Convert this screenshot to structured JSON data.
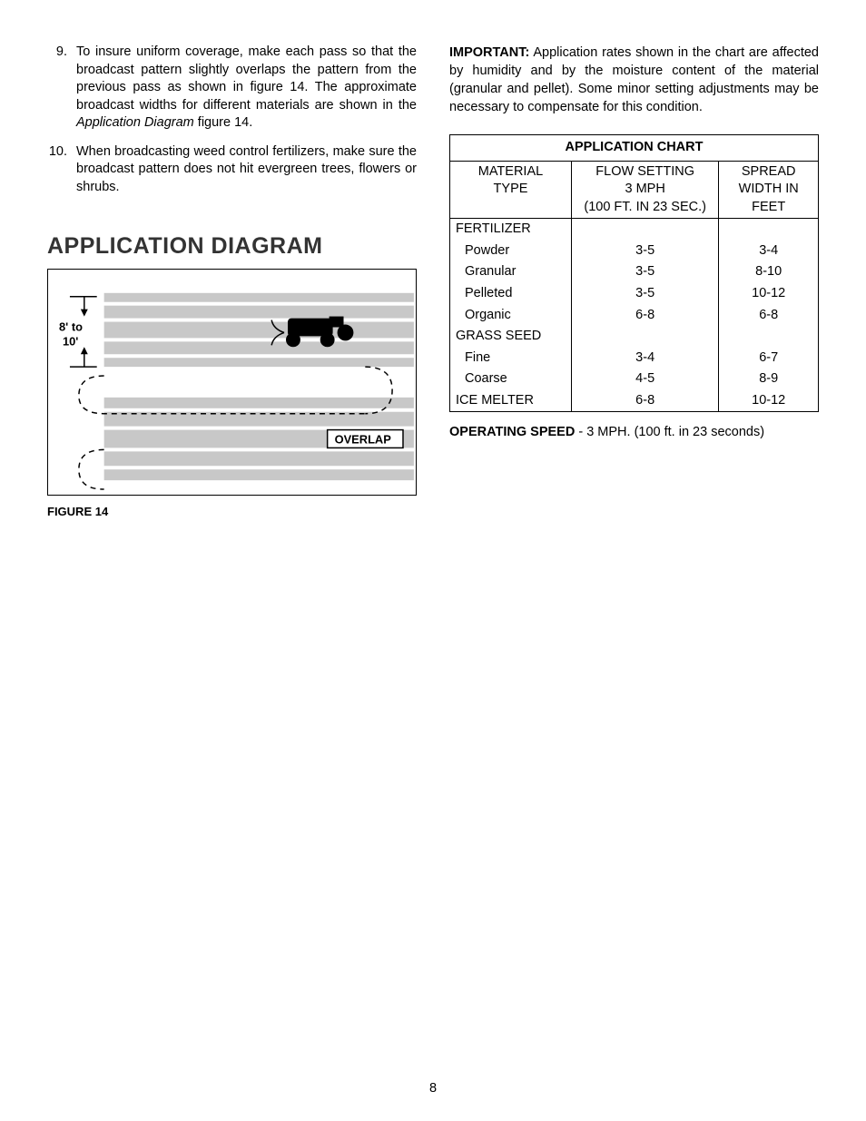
{
  "left": {
    "list": [
      {
        "num": "9.",
        "text": "To insure uniform coverage, make each pass so that the broadcast pattern slightly overlaps the pattern from the previous pass as shown in figure 14. The approximate broadcast widths for different materials are shown in the ",
        "italic": "Application Diagram",
        "tail": " figure 14."
      },
      {
        "num": "10.",
        "text": "When broadcasting weed control fertilizers, make sure the broadcast pattern does not hit evergreen trees, flowers or shrubs."
      }
    ],
    "section_title": "APPLICATION DIAGRAM",
    "diagram": {
      "width_label": "8' to 10'",
      "overlap_label": "OVERLAP",
      "stripe_color": "#c8c8c8",
      "bg_color": "#ffffff",
      "border_color": "#000000"
    },
    "figure_caption": "FIGURE 14"
  },
  "right": {
    "important_label": "IMPORTANT:",
    "important_text": " Application rates shown in the chart are affected by humidity and by the moisture content of the material (granular and pellet). Some minor setting adjustments may be necessary to compensate for this condition.",
    "chart": {
      "title": "APPLICATION CHART",
      "headers": {
        "col1": [
          "MATERIAL",
          "TYPE",
          ""
        ],
        "col2": [
          "FLOW SETTING",
          "3 MPH",
          "(100 FT. IN 23 SEC.)"
        ],
        "col3": [
          "SPREAD",
          "WIDTH IN",
          "FEET"
        ]
      },
      "rows": [
        {
          "c1": "FERTILIZER",
          "indent": false,
          "c2": "",
          "c3": ""
        },
        {
          "c1": "Powder",
          "indent": true,
          "c2": "3-5",
          "c3": "3-4"
        },
        {
          "c1": "Granular",
          "indent": true,
          "c2": "3-5",
          "c3": "8-10"
        },
        {
          "c1": "Pelleted",
          "indent": true,
          "c2": "3-5",
          "c3": "10-12"
        },
        {
          "c1": "Organic",
          "indent": true,
          "c2": "6-8",
          "c3": "6-8"
        },
        {
          "c1": "GRASS SEED",
          "indent": false,
          "c2": "",
          "c3": ""
        },
        {
          "c1": "Fine",
          "indent": true,
          "c2": "3-4",
          "c3": "6-7"
        },
        {
          "c1": "Coarse",
          "indent": true,
          "c2": "4-5",
          "c3": "8-9"
        },
        {
          "c1": "ICE MELTER",
          "indent": false,
          "c2": "6-8",
          "c3": "10-12"
        }
      ]
    },
    "op_speed_label": "OPERATING SPEED",
    "op_speed_text": " - 3 MPH. (100 ft. in 23 seconds)"
  },
  "page_number": "8"
}
